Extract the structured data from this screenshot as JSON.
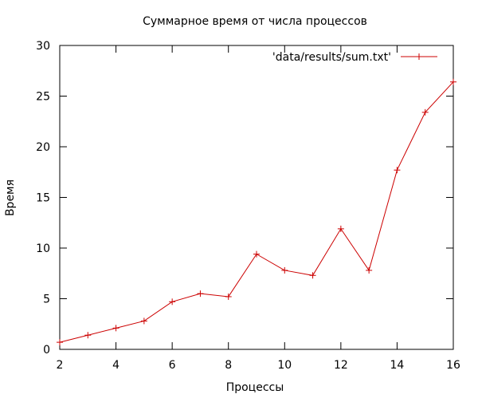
{
  "chart_data": {
    "type": "line",
    "title": "Суммарное время от числа процессов",
    "xlabel": "Процессы",
    "ylabel": "Время",
    "xlim": [
      2,
      16
    ],
    "ylim": [
      0,
      30
    ],
    "x_ticks": [
      2,
      4,
      6,
      8,
      10,
      12,
      14,
      16
    ],
    "y_ticks": [
      0,
      5,
      10,
      15,
      20,
      25,
      30
    ],
    "grid": false,
    "legend_position": "top-right",
    "series": [
      {
        "name": "'data/results/sum.txt'",
        "color": "#cc0000",
        "marker": "plus",
        "x": [
          2,
          3,
          4,
          5,
          6,
          7,
          8,
          9,
          10,
          11,
          12,
          13,
          14,
          15,
          16
        ],
        "y": [
          0.7,
          1.4,
          2.1,
          2.8,
          4.7,
          5.5,
          5.2,
          9.4,
          7.8,
          7.3,
          11.9,
          7.8,
          17.7,
          23.4,
          26.4
        ]
      }
    ]
  }
}
